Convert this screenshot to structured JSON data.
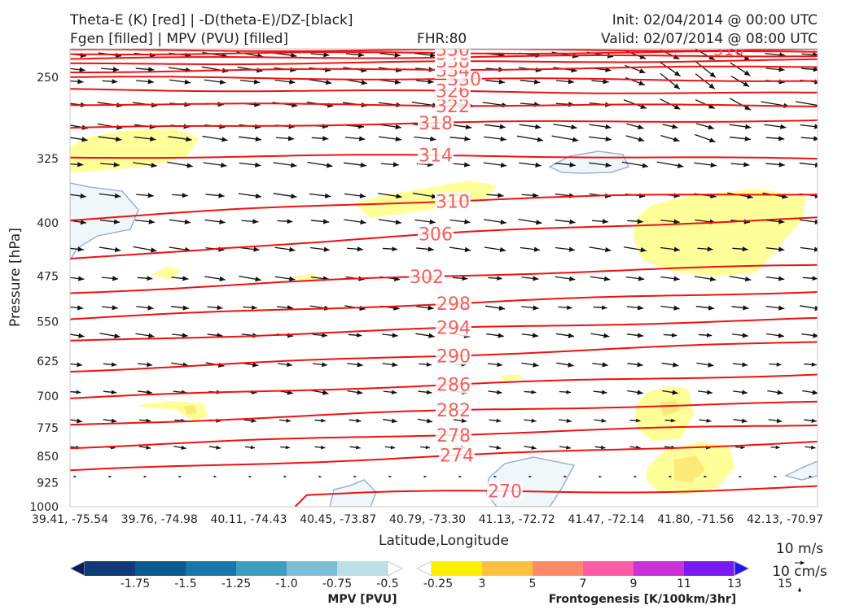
{
  "header": {
    "line1_left": "Theta-E (K) [red] | -D(theta-E)/DZ-[black]",
    "line2_left": "Fgen [filled] | MPV (PVU) [filled]",
    "fhr": "FHR:80",
    "init": "Init: 02/04/2014 @ 00:00 UTC",
    "valid": "Valid: 02/07/2014 @ 08:00 UTC"
  },
  "chart_data": {
    "type": "cross-section",
    "xlabel": "Latitude,Longitude",
    "ylabel": "Pressure [hPa]",
    "y_scale": "log-pressure, inverted",
    "ylim": [
      1000,
      190
    ],
    "y_ticks": [
      250,
      325,
      400,
      475,
      550,
      625,
      700,
      775,
      850,
      925,
      1000
    ],
    "x_ticks": [
      "39.41, -75.54",
      "39.76, -74.98",
      "40.11, -74.43",
      "40.45, -73.87",
      "40.79, -73.30",
      "41.13, -72.72",
      "41.47, -72.14",
      "41.80, -71.56",
      "42.13, -70.97"
    ],
    "theta_e_contours": [
      270,
      274,
      278,
      282,
      286,
      290,
      294,
      298,
      302,
      306,
      310,
      314,
      318,
      322,
      326,
      330,
      334,
      338,
      342,
      346,
      350
    ],
    "theta_e_labels_shown": [
      "270",
      "274",
      "278",
      "282",
      "286",
      "290",
      "294",
      "298",
      "302",
      "306",
      "310",
      "314",
      "318",
      "322",
      "326",
      "330",
      "334",
      "338",
      "346",
      "350"
    ],
    "colors": {
      "theta_e": "#ee1111",
      "label": "#f06060",
      "vector": "#111111",
      "mpv_contour": "#9fb0d0",
      "mpv_fill": "#f0f7fb",
      "fgen_3": "#ffff99",
      "fgen_5": "#fde97a"
    },
    "mpv_colorbar": {
      "title": "MPV [PVU]",
      "ticks": [
        "-1.75",
        "-1.5",
        "-1.25",
        "-1.0",
        "-0.75",
        "-0.5",
        "-0.25"
      ],
      "colors": [
        "#0d1a5c",
        "#0e3a78",
        "#0d5a8e",
        "#1777a6",
        "#3f9ec0",
        "#7dbdd6",
        "#bcdfe8",
        "#ffffff"
      ]
    },
    "fgen_colorbar": {
      "title": "Frontogenesis [K/100km/3hr]",
      "ticks": [
        "3",
        "5",
        "7",
        "9",
        "11",
        "13",
        "15"
      ],
      "colors": [
        "#ffffff",
        "#ffee00",
        "#ffc040",
        "#ff8a6a",
        "#ff5aa5",
        "#cc30d8",
        "#7a1cf0",
        "#2414f0"
      ]
    },
    "vector_scale": {
      "horizontal": "10 m/s",
      "vertical": "10 cm/s"
    }
  }
}
